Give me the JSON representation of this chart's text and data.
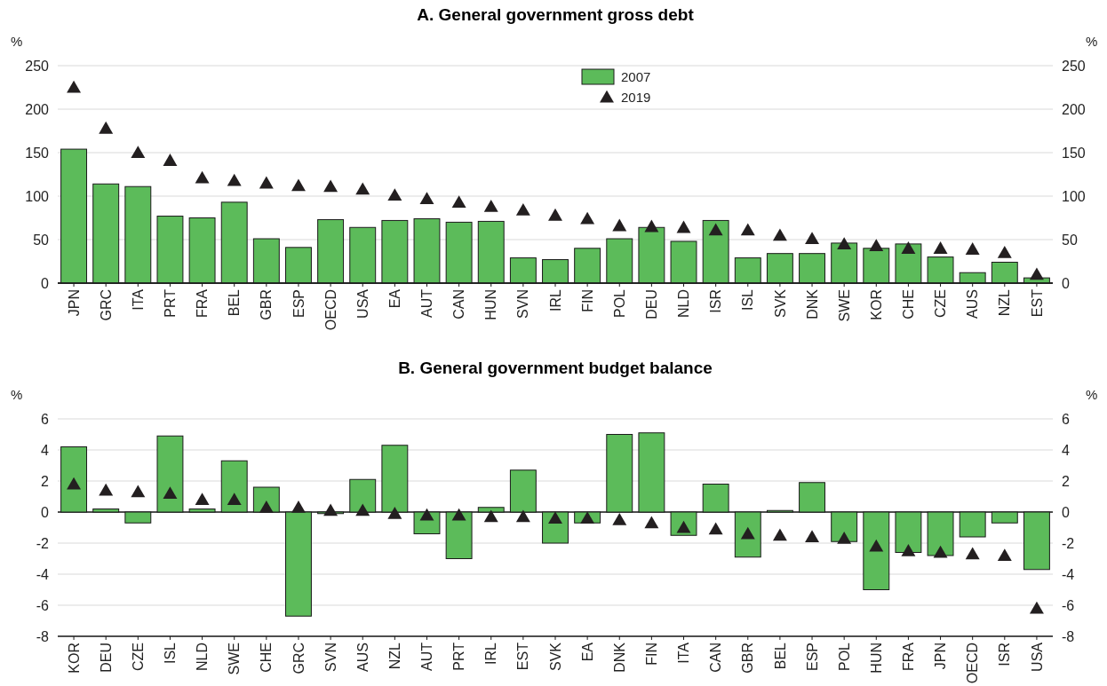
{
  "chart_data": [
    {
      "type": "bar",
      "title": "A. General government gross debt",
      "ylabel": "%",
      "y2label": "%",
      "categories": [
        "JPN",
        "GRC",
        "ITA",
        "PRT",
        "FRA",
        "BEL",
        "GBR",
        "ESP",
        "OECD",
        "USA",
        "EA",
        "AUT",
        "CAN",
        "HUN",
        "SVN",
        "IRL",
        "FIN",
        "POL",
        "DEU",
        "NLD",
        "ISR",
        "ISL",
        "SVK",
        "DNK",
        "SWE",
        "KOR",
        "CHE",
        "CZE",
        "AUS",
        "NZL",
        "EST"
      ],
      "series": [
        {
          "name": "2007",
          "color": "#5cbb5a",
          "values": [
            154,
            114,
            111,
            77,
            75,
            93,
            51,
            41,
            73,
            64,
            72,
            74,
            70,
            71,
            29,
            27,
            40,
            51,
            64,
            48,
            72,
            29,
            34,
            34,
            46,
            40,
            45,
            30,
            12,
            24,
            6
          ]
        },
        {
          "name": "2019",
          "type": "scatter",
          "color": "#231f20",
          "values": [
            225,
            178,
            150,
            141,
            121,
            118,
            115,
            112,
            111,
            108,
            101,
            97,
            93,
            88,
            84,
            78,
            74,
            66,
            65,
            64,
            61,
            61,
            55,
            51,
            45,
            43,
            40,
            40,
            39,
            35,
            10
          ]
        }
      ],
      "ylim": [
        0,
        250
      ],
      "yticks": [
        0,
        50,
        100,
        150,
        200,
        250
      ],
      "y2lim": [
        0,
        250
      ],
      "y2ticks": [
        0,
        50,
        100,
        150,
        200,
        250
      ],
      "grid": "y",
      "legend": "top",
      "marker": "triangle"
    },
    {
      "type": "bar",
      "title": "B. General government budget balance",
      "ylabel": "%",
      "y2label": "%",
      "categories": [
        "KOR",
        "DEU",
        "CZE",
        "ISL",
        "NLD",
        "SWE",
        "CHE",
        "GRC",
        "SVN",
        "AUS",
        "NZL",
        "AUT",
        "PRT",
        "IRL",
        "EST",
        "SVK",
        "EA",
        "DNK",
        "FIN",
        "ITA",
        "CAN",
        "GBR",
        "BEL",
        "ESP",
        "POL",
        "HUN",
        "FRA",
        "JPN",
        "OECD",
        "ISR",
        "USA"
      ],
      "series": [
        {
          "color": "#5cbb5a",
          "values": [
            4.2,
            0.2,
            -0.7,
            4.9,
            0.2,
            3.3,
            1.6,
            -6.7,
            -0.1,
            2.1,
            4.3,
            -1.4,
            -3.0,
            0.3,
            2.7,
            -2.0,
            -0.7,
            5.0,
            5.1,
            -1.5,
            1.8,
            -2.9,
            0.1,
            1.9,
            -1.9,
            -5.0,
            -2.6,
            -2.8,
            -1.6,
            -0.7,
            -3.7
          ]
        },
        {
          "type": "scatter",
          "color": "#231f20",
          "values": [
            1.8,
            1.4,
            1.3,
            1.2,
            0.8,
            0.8,
            0.3,
            0.3,
            0.1,
            0.1,
            -0.1,
            -0.2,
            -0.2,
            -0.3,
            -0.3,
            -0.4,
            -0.4,
            -0.5,
            -0.7,
            -1.0,
            -1.1,
            -1.4,
            -1.5,
            -1.6,
            -1.7,
            -2.2,
            -2.5,
            -2.6,
            -2.7,
            -2.8,
            -6.2
          ]
        }
      ],
      "ylim": [
        -8,
        6
      ],
      "yticks": [
        -8,
        -6,
        -4,
        -2,
        0,
        2,
        4,
        6
      ],
      "y2lim": [
        -8,
        6
      ],
      "y2ticks": [
        -8,
        -6,
        -4,
        -2,
        0,
        2,
        4,
        6
      ],
      "grid": "y",
      "marker": "triangle"
    }
  ]
}
